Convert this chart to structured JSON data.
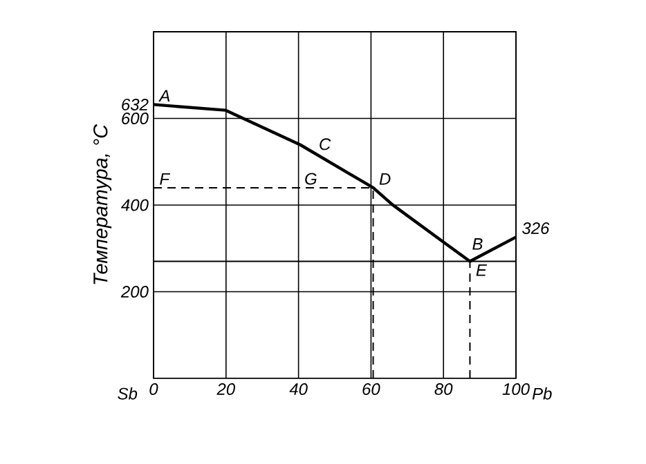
{
  "chart_data": {
    "type": "line",
    "ylabel": "Температура, °С",
    "x": [
      0,
      19.8,
      40.5,
      60.6,
      65.9,
      79.9,
      87.3,
      100
    ],
    "series": [
      {
        "color": "#000000",
        "values": [
          632,
          619,
          539,
          440,
          401,
          315,
          270,
          326
        ],
        "line_style": "solid"
      },
      {
        "color": "#000000",
        "x": [
          0,
          60.6
        ],
        "values": [
          440,
          440
        ],
        "line_style": "dashed"
      },
      {
        "color": "#000000",
        "x": [
          60.6,
          60.6
        ],
        "values": [
          0,
          440
        ],
        "line_style": "dashed"
      },
      {
        "color": "#000000",
        "x": [
          87.3,
          87.3
        ],
        "values": [
          0,
          270
        ],
        "line_style": "dashed"
      }
    ],
    "ref_lines": [
      {
        "axis": "y",
        "value": 270,
        "color": "#000000",
        "line_style": "solid"
      }
    ],
    "xlim": [
      0,
      100
    ],
    "ylim": [
      0,
      800
    ],
    "xticks": [
      0,
      20,
      40,
      60,
      80,
      100
    ],
    "yticks": [
      200,
      400,
      600,
      632
    ],
    "grid": true,
    "marker": "none",
    "annotations": [
      "Sb",
      "Pb",
      {
        "text": "A",
        "x": 0,
        "y": 632
      },
      {
        "text": "C",
        "x": 44,
        "y": 520
      },
      {
        "text": "D",
        "x": 60.6,
        "y": 440
      },
      {
        "text": "F",
        "x": 0,
        "y": 440
      },
      {
        "text": "G",
        "x": 40,
        "y": 440
      },
      {
        "text": "B",
        "x": 91,
        "y": 290
      },
      {
        "text": "E",
        "x": 87.3,
        "y": 270
      },
      {
        "text": "326",
        "x": 100,
        "y": 326
      }
    ]
  }
}
